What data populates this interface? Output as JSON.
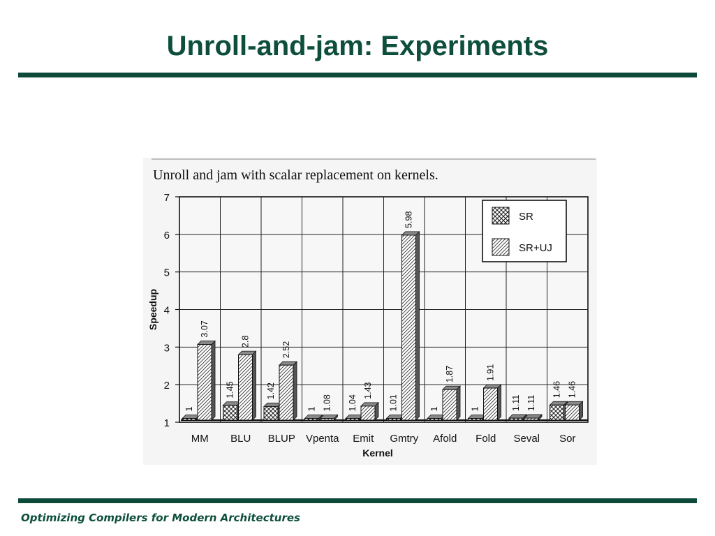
{
  "slide": {
    "title": "Unroll-and-jam: Experiments",
    "footer": "Optimizing Compilers for Modern Architectures"
  },
  "colors": {
    "title": "#0d4f3c",
    "rule": "#0d4a3a",
    "footer": "#0d4f3c"
  },
  "chart_data": {
    "type": "bar",
    "title": "Unroll and jam with scalar replacement on kernels.",
    "xlabel": "Kernel",
    "ylabel": "Speedup",
    "ylim": [
      1,
      7
    ],
    "yticks": [
      "1",
      "2",
      "3",
      "4",
      "5",
      "6",
      "7"
    ],
    "grid": true,
    "legend_position": "top-right",
    "categories": [
      "MM",
      "BLU",
      "BLUP",
      "Vpenta",
      "Emit",
      "Gmtry",
      "Afold",
      "Fold",
      "Seval",
      "Sor"
    ],
    "series": [
      {
        "name": "SR",
        "pattern": "crosshatch",
        "values": [
          1,
          1.45,
          1.42,
          1,
          1.04,
          1.01,
          1,
          1,
          1.11,
          1.46
        ],
        "labels": [
          "1",
          "1.45",
          "1.42",
          "1",
          "1.04",
          "1.01",
          "1",
          "1",
          "1.11",
          "1.46"
        ]
      },
      {
        "name": "SR+UJ",
        "pattern": "diagonal-hatch",
        "values": [
          3.07,
          2.8,
          2.52,
          1.08,
          1.43,
          5.98,
          1.87,
          1.91,
          1.11,
          1.46
        ],
        "labels": [
          "3.07",
          "2.8",
          "2.52",
          "1.08",
          "1.43",
          "5.98",
          "1.87",
          "1.91",
          "1.11",
          "1.46"
        ]
      }
    ]
  }
}
